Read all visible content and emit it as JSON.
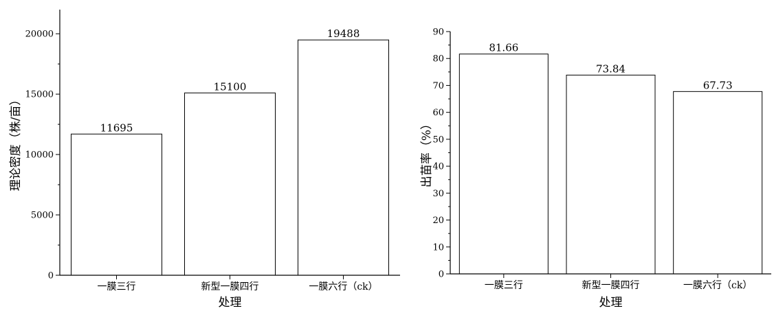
{
  "chart_data": [
    {
      "type": "bar",
      "categories": [
        "一膜三行",
        "新型一膜四行",
        "一膜六行（ck）"
      ],
      "values": [
        11695,
        15100,
        19488
      ],
      "data_labels": [
        "11695",
        "15100",
        "19488"
      ],
      "xlabel": "处理",
      "ylabel": "理论密度（株/亩）",
      "ylim": [
        0,
        22000
      ],
      "yticks": [
        0,
        5000,
        10000,
        15000,
        20000
      ],
      "ytick_labels": [
        "0",
        "5000",
        "10000",
        "15000",
        "20000"
      ],
      "bar_fill": "#ffffff",
      "bar_stroke": "#000000",
      "grid": false,
      "legend": "none"
    },
    {
      "type": "bar",
      "categories": [
        "一膜三行",
        "新型一膜四行",
        "一膜六行（ck）"
      ],
      "values": [
        81.66,
        73.84,
        67.73
      ],
      "data_labels": [
        "81.66",
        "73.84",
        "67.73"
      ],
      "xlabel": "处理",
      "ylabel": "出苗率（%）",
      "ylim": [
        0,
        90
      ],
      "yticks": [
        0,
        10,
        20,
        30,
        40,
        50,
        60,
        70,
        80,
        90
      ],
      "ytick_labels": [
        "0",
        "10",
        "20",
        "30",
        "40",
        "50",
        "60",
        "70",
        "80",
        "90"
      ],
      "bar_fill": "#ffffff",
      "bar_stroke": "#000000",
      "grid": false,
      "legend": "none"
    }
  ]
}
